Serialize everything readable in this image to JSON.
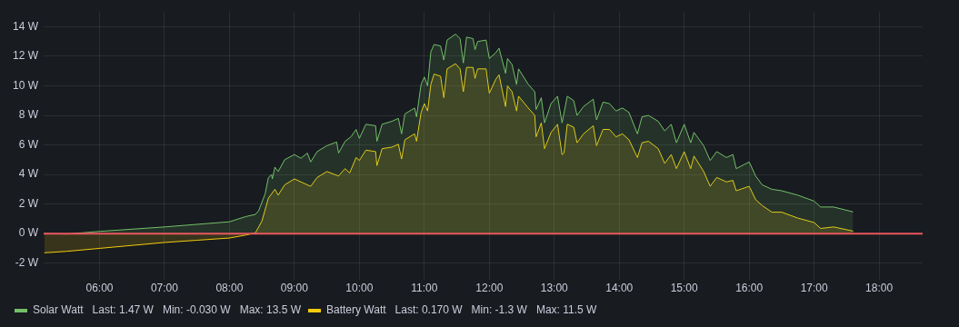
{
  "chart_data": {
    "type": "area",
    "xlim": [
      5.14,
      18.67
    ],
    "ylim": [
      -3.1,
      15
    ],
    "xticks": [
      {
        "value": 6,
        "label": "06:00"
      },
      {
        "value": 7,
        "label": "07:00"
      },
      {
        "value": 8,
        "label": "08:00"
      },
      {
        "value": 9,
        "label": "09:00"
      },
      {
        "value": 10,
        "label": "10:00"
      },
      {
        "value": 11,
        "label": "11:00"
      },
      {
        "value": 12,
        "label": "12:00"
      },
      {
        "value": 13,
        "label": "13:00"
      },
      {
        "value": 14,
        "label": "14:00"
      },
      {
        "value": 15,
        "label": "15:00"
      },
      {
        "value": 16,
        "label": "16:00"
      },
      {
        "value": 17,
        "label": "17:00"
      },
      {
        "value": 18,
        "label": "18:00"
      }
    ],
    "yticks": [
      {
        "value": -2,
        "label": "-2 W"
      },
      {
        "value": 0,
        "label": "0 W"
      },
      {
        "value": 2,
        "label": "2 W"
      },
      {
        "value": 4,
        "label": "4 W"
      },
      {
        "value": 6,
        "label": "6 W"
      },
      {
        "value": 8,
        "label": "8 W"
      },
      {
        "value": 10,
        "label": "10 W"
      },
      {
        "value": 12,
        "label": "12 W"
      },
      {
        "value": 14,
        "label": "14 W"
      }
    ],
    "grid": true,
    "legend": "bottom left",
    "marker": "none",
    "line_style": "solid",
    "ref_lines": [
      {
        "axis": "y",
        "value": 0,
        "color": "#e8575f"
      }
    ],
    "series": [
      {
        "name": "Solar Watt   Last: 1.47 W   Min: -0.030 W   Max: 13.5 W",
        "color": "#73bf69",
        "x": [
          5.15,
          5.5,
          6.0,
          7.0,
          8.0,
          8.25,
          8.4,
          8.45,
          8.55,
          8.6,
          8.65,
          8.66,
          8.7,
          8.75,
          8.85,
          9.0,
          9.1,
          9.2,
          9.25,
          9.35,
          9.5,
          9.65,
          9.68,
          9.78,
          9.87,
          9.95,
          10.0,
          10.1,
          10.25,
          10.27,
          10.35,
          10.5,
          10.6,
          10.65,
          10.7,
          10.85,
          10.88,
          10.95,
          11.0,
          11.05,
          11.1,
          11.15,
          11.25,
          11.3,
          11.35,
          11.48,
          11.55,
          11.6,
          11.65,
          11.75,
          11.78,
          11.82,
          11.95,
          12.0,
          12.1,
          12.15,
          12.25,
          12.28,
          12.35,
          12.42,
          12.45,
          12.6,
          12.7,
          12.72,
          12.8,
          12.85,
          12.95,
          13.05,
          13.12,
          13.2,
          13.3,
          13.35,
          13.45,
          13.6,
          13.65,
          13.75,
          13.85,
          13.95,
          14.05,
          14.15,
          14.28,
          14.35,
          14.45,
          14.6,
          14.7,
          14.8,
          14.88,
          15.0,
          15.1,
          15.15,
          15.3,
          15.4,
          15.5,
          15.65,
          15.75,
          15.8,
          16.0,
          16.1,
          16.2,
          16.35,
          16.5,
          16.75,
          17.0,
          17.1,
          17.3,
          17.6
        ],
        "values": [
          0,
          -0.03,
          0.15,
          0.45,
          0.8,
          1.15,
          1.3,
          1.55,
          2.7,
          3.8,
          4.0,
          3.7,
          4.5,
          4.2,
          5.0,
          5.35,
          5.1,
          5.45,
          4.85,
          5.55,
          5.95,
          6.2,
          5.45,
          6.25,
          6.55,
          7.05,
          6.45,
          7.4,
          7.3,
          6.25,
          7.4,
          7.6,
          7.8,
          6.75,
          8.1,
          8.5,
          7.9,
          10.1,
          10.6,
          10.0,
          12.3,
          12.8,
          12.7,
          11.75,
          13.1,
          13.5,
          13.2,
          11.55,
          13.3,
          13.2,
          12.45,
          13.0,
          13.1,
          11.85,
          12.25,
          12.55,
          10.85,
          11.85,
          11.45,
          10.1,
          11.15,
          10.1,
          9.6,
          8.4,
          9.2,
          7.5,
          8.8,
          9.3,
          7.5,
          9.3,
          9.0,
          8.0,
          8.6,
          9.1,
          7.7,
          8.9,
          8.8,
          8.3,
          8.5,
          8.2,
          6.75,
          7.9,
          8.0,
          7.6,
          6.95,
          7.4,
          6.15,
          7.4,
          6.15,
          6.85,
          5.95,
          4.95,
          5.55,
          5.15,
          5.35,
          4.4,
          4.85,
          3.9,
          3.3,
          3.0,
          2.9,
          2.6,
          2.2,
          1.8,
          1.8,
          1.47
        ]
      },
      {
        "name": "Battery Watt   Last: 0.170 W   Min: -1.3 W   Max: 11.5 W",
        "color": "#f2cc0c",
        "x": [
          5.15,
          5.5,
          6.0,
          6.5,
          7.0,
          7.5,
          8.0,
          8.25,
          8.4,
          8.5,
          8.6,
          8.7,
          8.75,
          8.85,
          9.0,
          9.1,
          9.25,
          9.35,
          9.5,
          9.68,
          9.78,
          9.85,
          9.95,
          10.0,
          10.1,
          10.25,
          10.27,
          10.35,
          10.5,
          10.6,
          10.65,
          10.7,
          10.85,
          10.88,
          10.95,
          11.0,
          11.05,
          11.1,
          11.15,
          11.25,
          11.3,
          11.35,
          11.48,
          11.55,
          11.6,
          11.65,
          11.75,
          11.78,
          11.82,
          11.95,
          12.0,
          12.1,
          12.15,
          12.25,
          12.28,
          12.35,
          12.42,
          12.45,
          12.6,
          12.7,
          12.72,
          12.8,
          12.85,
          12.95,
          13.05,
          13.12,
          13.15,
          13.2,
          13.3,
          13.35,
          13.45,
          13.6,
          13.65,
          13.75,
          13.85,
          13.95,
          14.05,
          14.15,
          14.28,
          14.35,
          14.45,
          14.6,
          14.7,
          14.8,
          14.88,
          15.0,
          15.1,
          15.15,
          15.3,
          15.4,
          15.5,
          15.65,
          15.75,
          15.8,
          16.0,
          16.1,
          16.2,
          16.35,
          16.5,
          16.75,
          17.0,
          17.1,
          17.3,
          17.6
        ],
        "values": [
          -1.3,
          -1.2,
          -1.0,
          -0.8,
          -0.6,
          -0.45,
          -0.3,
          -0.1,
          0.05,
          0.85,
          2.4,
          3.0,
          2.6,
          3.3,
          3.7,
          3.5,
          3.2,
          3.8,
          4.2,
          3.9,
          4.4,
          4.1,
          5.15,
          4.95,
          5.65,
          5.55,
          4.6,
          5.75,
          5.85,
          6.05,
          5.05,
          6.35,
          6.75,
          6.25,
          8.2,
          8.8,
          8.3,
          10.1,
          10.8,
          10.65,
          9.2,
          11.15,
          11.5,
          11.15,
          9.6,
          11.25,
          11.25,
          10.5,
          11.15,
          11.15,
          9.5,
          10.45,
          10.75,
          8.6,
          10.0,
          9.6,
          8.3,
          9.3,
          8.5,
          8.0,
          6.55,
          7.5,
          5.75,
          6.85,
          7.4,
          5.35,
          5.45,
          7.4,
          7.2,
          6.15,
          6.75,
          7.3,
          5.95,
          7.05,
          7.05,
          6.55,
          6.75,
          6.35,
          5.15,
          6.15,
          6.25,
          5.75,
          4.75,
          5.35,
          4.4,
          5.55,
          4.4,
          5.25,
          4.2,
          3.2,
          3.8,
          3.5,
          3.6,
          2.9,
          3.2,
          2.3,
          1.9,
          1.45,
          1.45,
          1.05,
          0.75,
          0.35,
          0.45,
          0.17
        ]
      }
    ]
  }
}
